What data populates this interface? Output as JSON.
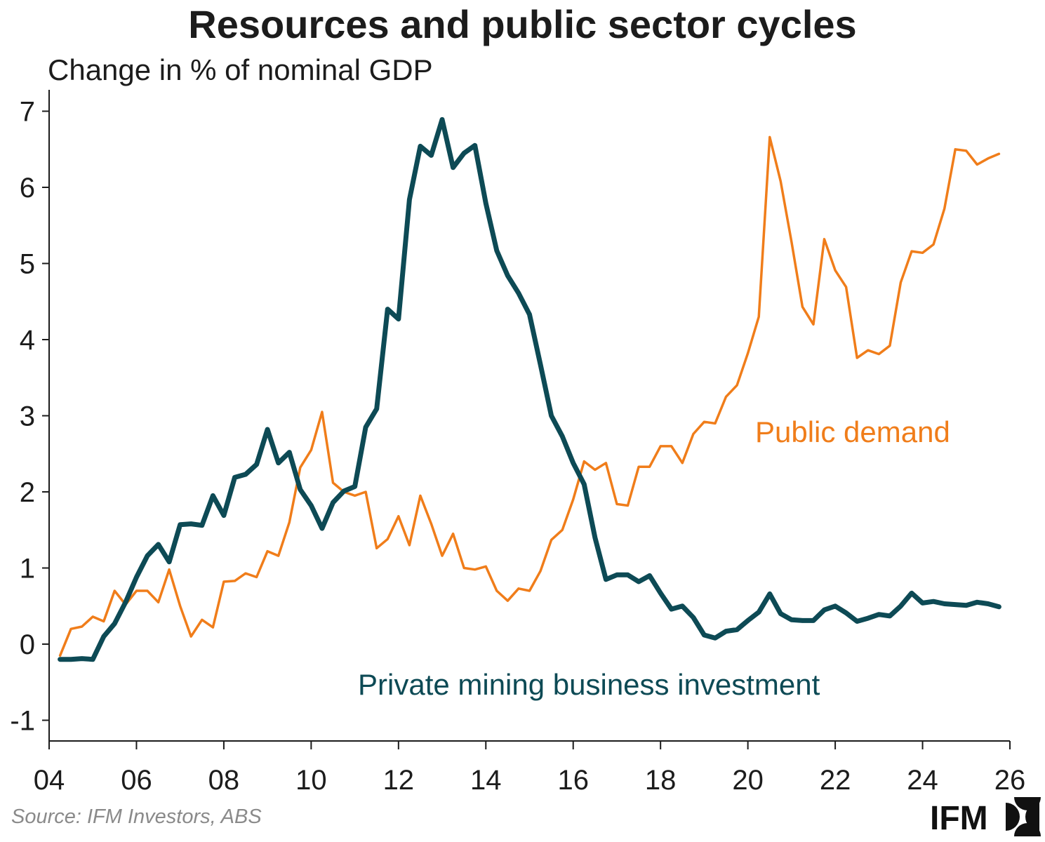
{
  "chart_data": {
    "type": "line",
    "title": "Resources and public sector cycles",
    "ylabel": "Change in % of nominal GDP",
    "xlabel": "",
    "xlim": [
      2004,
      2026
    ],
    "ylim": [
      -1.3,
      7.3
    ],
    "x_start": 2004.25,
    "x_step": 0.25,
    "x_ticks": [
      2004,
      2006,
      2008,
      2010,
      2012,
      2014,
      2016,
      2018,
      2020,
      2022,
      2024,
      2026
    ],
    "x_tick_labels": [
      "04",
      "06",
      "08",
      "10",
      "12",
      "14",
      "16",
      "18",
      "20",
      "22",
      "24",
      "26"
    ],
    "y_ticks": [
      -1,
      0,
      1,
      2,
      3,
      4,
      5,
      6,
      7
    ],
    "y_tick_labels": [
      "-1",
      "0",
      "1",
      "2",
      "3",
      "4",
      "5",
      "6",
      "7"
    ],
    "grid": false,
    "legend": "inline labels",
    "series": [
      {
        "name": "Private mining business investment",
        "color": "#0d4a55",
        "values": [
          -0.2,
          -0.2,
          -0.19,
          -0.2,
          0.1,
          0.27,
          0.55,
          0.88,
          1.16,
          1.31,
          1.08,
          1.57,
          1.58,
          1.56,
          1.95,
          1.69,
          2.19,
          2.23,
          2.36,
          2.82,
          2.38,
          2.52,
          2.03,
          1.82,
          1.52,
          1.86,
          2.01,
          2.07,
          2.85,
          3.09,
          4.4,
          4.27,
          5.84,
          6.54,
          6.42,
          6.89,
          6.26,
          6.45,
          6.55,
          5.79,
          5.17,
          4.84,
          4.61,
          4.33,
          3.67,
          3.0,
          2.73,
          2.38,
          2.1,
          1.4,
          0.85,
          0.91,
          0.91,
          0.82,
          0.9,
          0.67,
          0.46,
          0.5,
          0.35,
          0.12,
          0.08,
          0.17,
          0.19,
          0.31,
          0.42,
          0.66,
          0.4,
          0.32,
          0.31,
          0.31,
          0.45,
          0.5,
          0.41,
          0.3,
          0.34,
          0.39,
          0.37,
          0.5,
          0.67,
          0.54,
          0.56,
          0.53,
          0.52,
          0.51,
          0.55,
          0.53,
          0.49
        ]
      },
      {
        "name": "Public demand",
        "color": "#f07d1a",
        "values": [
          -0.15,
          0.2,
          0.23,
          0.36,
          0.3,
          0.7,
          0.52,
          0.7,
          0.7,
          0.55,
          0.98,
          0.5,
          0.1,
          0.32,
          0.22,
          0.82,
          0.83,
          0.93,
          0.88,
          1.22,
          1.16,
          1.6,
          2.32,
          2.55,
          3.05,
          2.12,
          2.0,
          1.95,
          2.0,
          1.26,
          1.38,
          1.68,
          1.3,
          1.95,
          1.58,
          1.16,
          1.45,
          1.0,
          0.98,
          1.02,
          0.7,
          0.57,
          0.73,
          0.7,
          0.96,
          1.37,
          1.5,
          1.9,
          2.4,
          2.29,
          2.38,
          1.84,
          1.82,
          2.33,
          2.33,
          2.6,
          2.6,
          2.38,
          2.76,
          2.92,
          2.9,
          3.25,
          3.4,
          3.82,
          4.3,
          6.66,
          6.08,
          5.28,
          4.43,
          4.2,
          5.32,
          4.91,
          4.69,
          3.76,
          3.86,
          3.81,
          3.92,
          4.75,
          5.16,
          5.14,
          5.25,
          5.72,
          6.5,
          6.48,
          6.3,
          6.38,
          6.44
        ]
      }
    ]
  },
  "source": "Source: IFM Investors, ABS",
  "logo_text": "IFM"
}
